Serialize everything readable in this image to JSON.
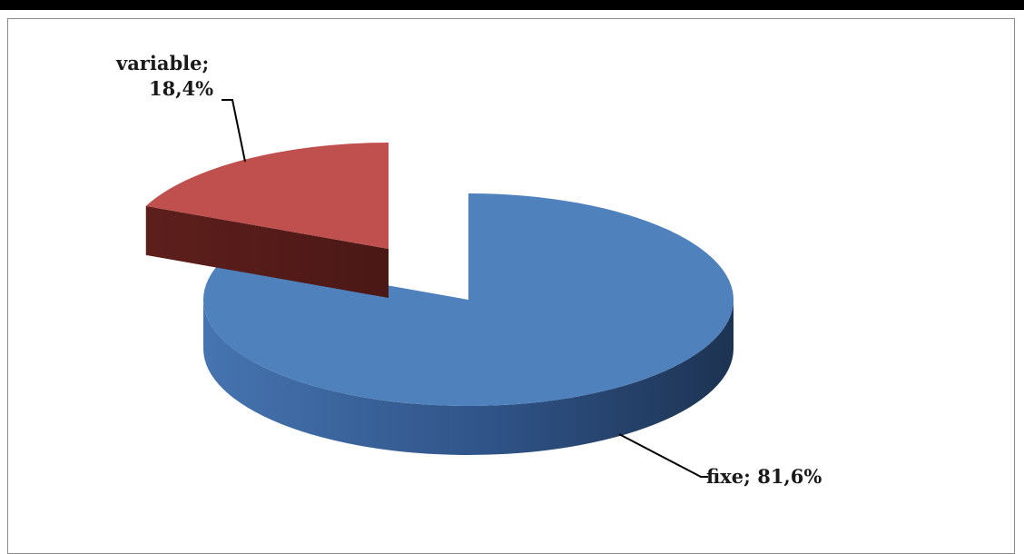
{
  "chart_data": {
    "type": "pie",
    "title": "",
    "slices": [
      {
        "label": "fixe",
        "value": 81.6,
        "display": "81,6%",
        "color": "#4F81BD"
      },
      {
        "label": "variable",
        "value": 18.4,
        "display": "18,4%",
        "color": "#C0504D"
      }
    ],
    "labels": {
      "fixe": "fixe; 81,6%",
      "variable_line1": "variable;",
      "variable_line2": "18,4%"
    },
    "legend": "none",
    "style": "3d-exploded"
  }
}
